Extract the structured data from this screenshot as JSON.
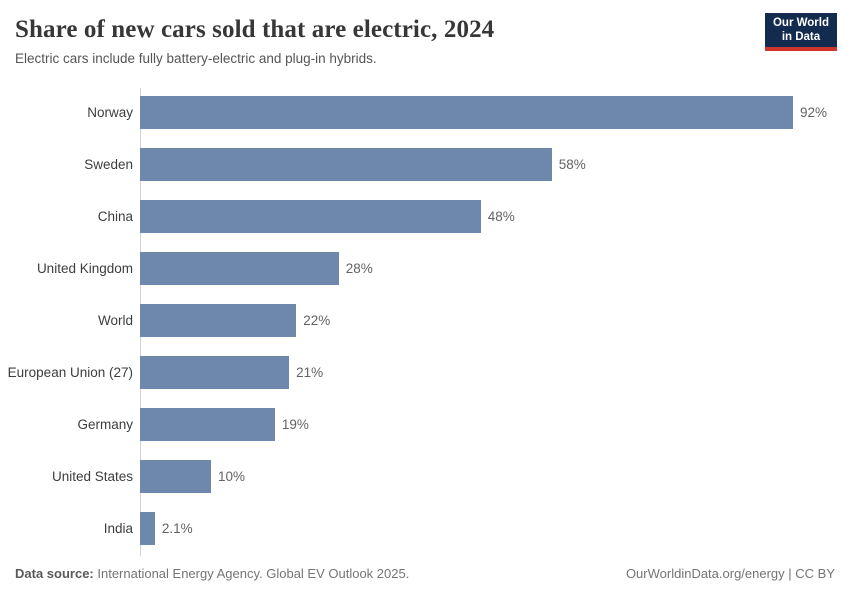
{
  "header": {
    "title": "Share of new cars sold that are electric, 2024",
    "subtitle": "Electric cars include fully battery-electric and plug-in hybrids.",
    "logo": {
      "line1": "Our World",
      "line2": "in Data"
    }
  },
  "chart_data": {
    "type": "bar",
    "orientation": "horizontal",
    "title": "Share of new cars sold that are electric, 2024",
    "subtitle": "Electric cars include fully battery-electric and plug-in hybrids.",
    "categories": [
      "Norway",
      "Sweden",
      "China",
      "United Kingdom",
      "World",
      "European Union (27)",
      "Germany",
      "United States",
      "India"
    ],
    "values": [
      92,
      58,
      48,
      28,
      22,
      21,
      19,
      10,
      2.1
    ],
    "value_labels": [
      "92%",
      "58%",
      "48%",
      "28%",
      "22%",
      "21%",
      "19%",
      "10%",
      "2.1%"
    ],
    "unit": "%",
    "xlabel": "",
    "ylabel": "",
    "xlim": [
      0,
      98
    ],
    "grid": false,
    "legend": false,
    "bar_color": "#6d87ad",
    "axis_line_color": "#ccd3dd"
  },
  "footer": {
    "source_label": "Data source:",
    "source_text": " International Energy Agency. Global EV Outlook 2025.",
    "rights": "OurWorldinData.org/energy | CC BY"
  },
  "colors": {
    "title": "#373737",
    "subtitle": "#555555",
    "bar": "#6d87ad",
    "logo_background": "#122b4e",
    "logo_underline": "#d0342c",
    "footer_text": "#757575"
  }
}
